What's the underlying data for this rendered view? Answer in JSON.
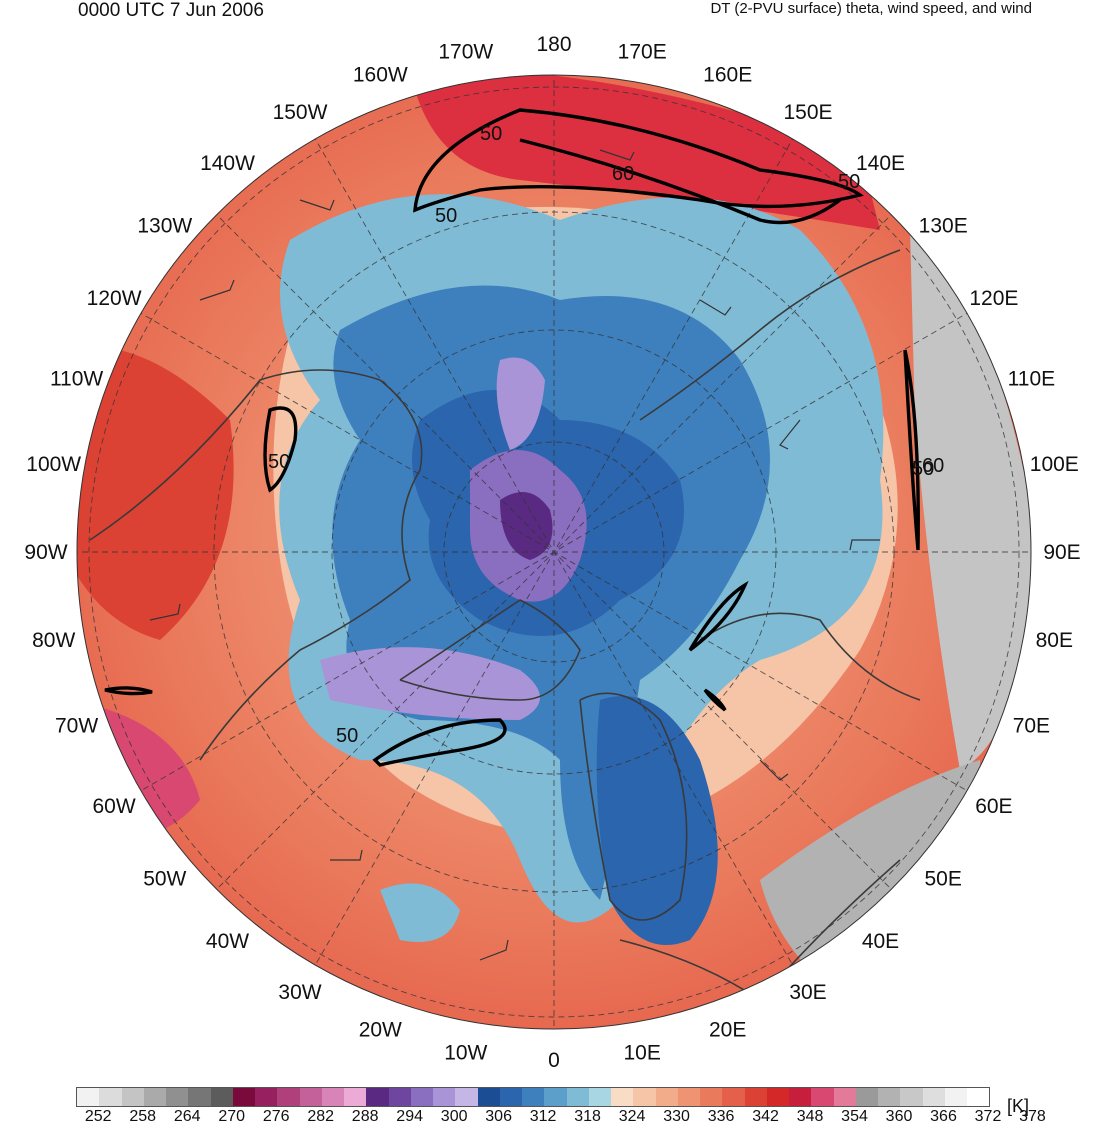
{
  "header": {
    "time_label": "0000 UTC 7 Jun 2006",
    "field_label": "DT (2-PVU surface) theta, wind speed, and wind"
  },
  "map": {
    "projection": "north-polar-stereographic",
    "longitude_labels": [
      "180",
      "170E",
      "160E",
      "150E",
      "140E",
      "130E",
      "120E",
      "110E",
      "100E",
      "90E",
      "80E",
      "70E",
      "60E",
      "50E",
      "40E",
      "30E",
      "20E",
      "10E",
      "0",
      "10W",
      "20W",
      "30W",
      "40W",
      "50W",
      "60W",
      "70W",
      "80W",
      "90W",
      "100W",
      "110W",
      "120W",
      "130W",
      "140W",
      "150W",
      "160W",
      "170W"
    ],
    "wind_speed_contour_labels": [
      "50",
      "50",
      "60",
      "50",
      "50",
      "50",
      "50",
      "60"
    ],
    "colors": {
      "background_warm": "#e9735a",
      "cold_core": "#1f5fa8",
      "pole_purple": "#8a6fc0",
      "coastline": "#3a3a3a",
      "contour": "#000000"
    }
  },
  "colorbar": {
    "units": "[K]",
    "tick_labels": [
      "252",
      "258",
      "264",
      "270",
      "276",
      "282",
      "288",
      "294",
      "300",
      "306",
      "312",
      "318",
      "324",
      "330",
      "336",
      "342",
      "348",
      "354",
      "360",
      "366",
      "372",
      "378"
    ],
    "colors": [
      "#f2f2f2",
      "#dcdcdc",
      "#c4c4c4",
      "#aaaaaa",
      "#909090",
      "#767676",
      "#5c5c5c",
      "#7a0a3c",
      "#962060",
      "#b0407c",
      "#c4609a",
      "#d884b8",
      "#ecaad6",
      "#5a2a82",
      "#6e46a0",
      "#8a6ec0",
      "#a894d6",
      "#c6b6e6",
      "#1b4d94",
      "#2a65ad",
      "#3e80bd",
      "#5c9fca",
      "#80bbd6",
      "#a8d6e2",
      "#f8dcc6",
      "#f6c4a6",
      "#f3ac8a",
      "#ef9472",
      "#ea7a5c",
      "#e4604a",
      "#dc4234",
      "#d42828",
      "#c81e3e",
      "#d84870",
      "#e47a9a",
      "#9a9a9a",
      "#b2b2b2",
      "#c8c8c8",
      "#dedede",
      "#f2f2f2",
      "#ffffff"
    ]
  }
}
